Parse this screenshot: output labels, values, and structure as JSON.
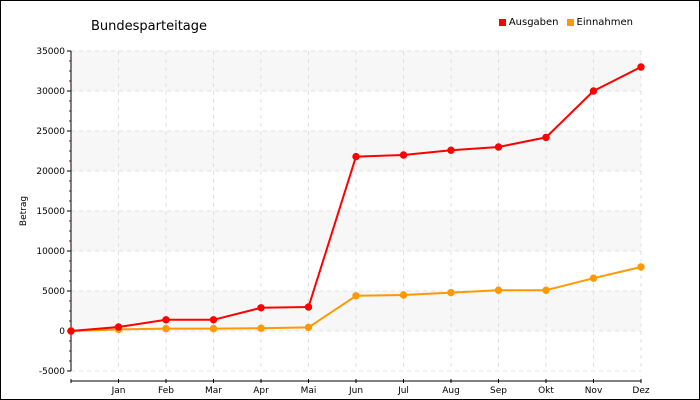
{
  "chart_data": {
    "type": "line",
    "title": "Bundesparteitage",
    "xlabel": "",
    "ylabel": "Betrag",
    "categories": [
      "",
      "Jan",
      "Feb",
      "Mar",
      "Apr",
      "Mai",
      "Jun",
      "Jul",
      "Aug",
      "Sep",
      "Okt",
      "Nov",
      "Dez"
    ],
    "series": [
      {
        "name": "Ausgaben",
        "color": "#ff0000",
        "values": [
          0,
          500,
          1400,
          1400,
          2900,
          3000,
          21800,
          22000,
          22600,
          23000,
          24200,
          30000,
          33000
        ]
      },
      {
        "name": "Einnahmen",
        "color": "#ff9900",
        "values": [
          0,
          200,
          300,
          300,
          350,
          450,
          4400,
          4500,
          4800,
          5100,
          5100,
          6600,
          8000
        ]
      }
    ],
    "ylim": [
      -5000,
      35000
    ],
    "yticks": [
      -5000,
      0,
      5000,
      10000,
      15000,
      20000,
      25000,
      30000,
      35000
    ],
    "grid": true,
    "legend_position": "top-right"
  }
}
